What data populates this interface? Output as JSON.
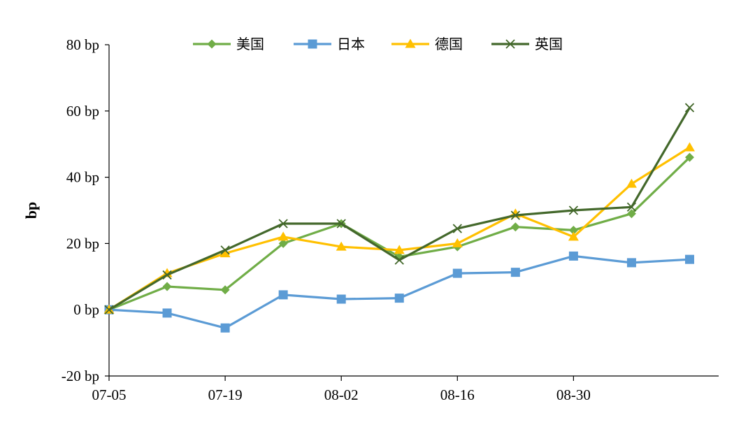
{
  "chart_data": {
    "type": "line",
    "ylabel": "bp",
    "y_unit": " bp",
    "ylim": [
      -20,
      80
    ],
    "y_ticks": [
      -20,
      0,
      20,
      40,
      60,
      80
    ],
    "x_tick_labels": [
      "07-05",
      "07-19",
      "08-02",
      "08-16",
      "08-30"
    ],
    "x": [
      "07-05",
      "07-12",
      "07-19",
      "07-26",
      "08-02",
      "08-09",
      "08-16",
      "08-23",
      "08-30",
      "09-06",
      "09-10"
    ],
    "legend_position": "top",
    "grid": false,
    "series": [
      {
        "name": "美国",
        "color": "#70AD47",
        "marker": "diamond",
        "values": [
          0,
          7,
          6,
          20,
          26,
          16,
          19,
          25,
          24,
          29,
          46
        ]
      },
      {
        "name": "日本",
        "color": "#5B9BD5",
        "marker": "square",
        "values": [
          0,
          -1,
          -5.5,
          4.5,
          3.2,
          3.5,
          11,
          11.3,
          16.2,
          14.2,
          15.2
        ]
      },
      {
        "name": "德国",
        "color": "#FFC000",
        "marker": "triangle",
        "values": [
          0,
          11,
          17,
          22,
          19,
          18,
          20,
          29,
          22,
          38,
          49
        ]
      },
      {
        "name": "英国",
        "color": "#43682B",
        "marker": "x",
        "values": [
          0,
          10.5,
          18,
          26,
          26,
          15,
          24.5,
          28.5,
          30,
          31,
          61
        ]
      }
    ]
  }
}
